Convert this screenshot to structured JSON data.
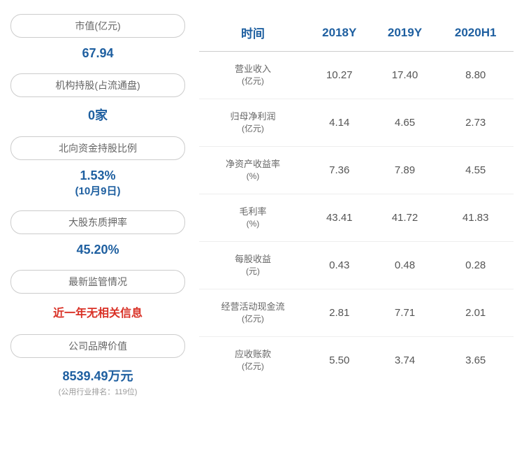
{
  "left_panel": {
    "items": [
      {
        "label": "市值(亿元)",
        "value": "67.94",
        "value_color": "#1e5fa0"
      },
      {
        "label": "机构持股(占流通盘)",
        "value": "0家",
        "value_color": "#1e5fa0"
      },
      {
        "label": "北向资金持股比例",
        "value": "1.53%",
        "sub_value": "(10月9日)",
        "value_color": "#1e5fa0"
      },
      {
        "label": "大股东质押率",
        "value": "45.20%",
        "value_color": "#1e5fa0"
      },
      {
        "label": "最新监管情况",
        "value": "近一年无相关信息",
        "value_color": "#d93025"
      },
      {
        "label": "公司品牌价值",
        "value": "8539.49万元",
        "note": "(公用行业排名：119位)",
        "value_color": "#1e5fa0"
      }
    ]
  },
  "table": {
    "headers": [
      "时间",
      "2018Y",
      "2019Y",
      "2020H1"
    ],
    "rows": [
      {
        "metric": "营业收入",
        "unit": "(亿元)",
        "values": [
          "10.27",
          "17.40",
          "8.80"
        ]
      },
      {
        "metric": "归母净利润",
        "unit": "(亿元)",
        "values": [
          "4.14",
          "4.65",
          "2.73"
        ]
      },
      {
        "metric": "净资产收益率",
        "unit": "(%)",
        "values": [
          "7.36",
          "7.89",
          "4.55"
        ]
      },
      {
        "metric": "毛利率",
        "unit": "(%)",
        "values": [
          "43.41",
          "41.72",
          "41.83"
        ]
      },
      {
        "metric": "每股收益",
        "unit": "(元)",
        "values": [
          "0.43",
          "0.48",
          "0.28"
        ]
      },
      {
        "metric": "经营活动现金流",
        "unit": "(亿元)",
        "values": [
          "2.81",
          "7.71",
          "2.01"
        ]
      },
      {
        "metric": "应收账款",
        "unit": "(亿元)",
        "values": [
          "5.50",
          "3.74",
          "3.65"
        ]
      }
    ]
  },
  "colors": {
    "primary_blue": "#1e5fa0",
    "alert_red": "#d93025",
    "border_gray": "#cccccc",
    "text_gray": "#666666",
    "value_gray": "#555555",
    "row_border": "#eeeeee",
    "background": "#ffffff"
  }
}
